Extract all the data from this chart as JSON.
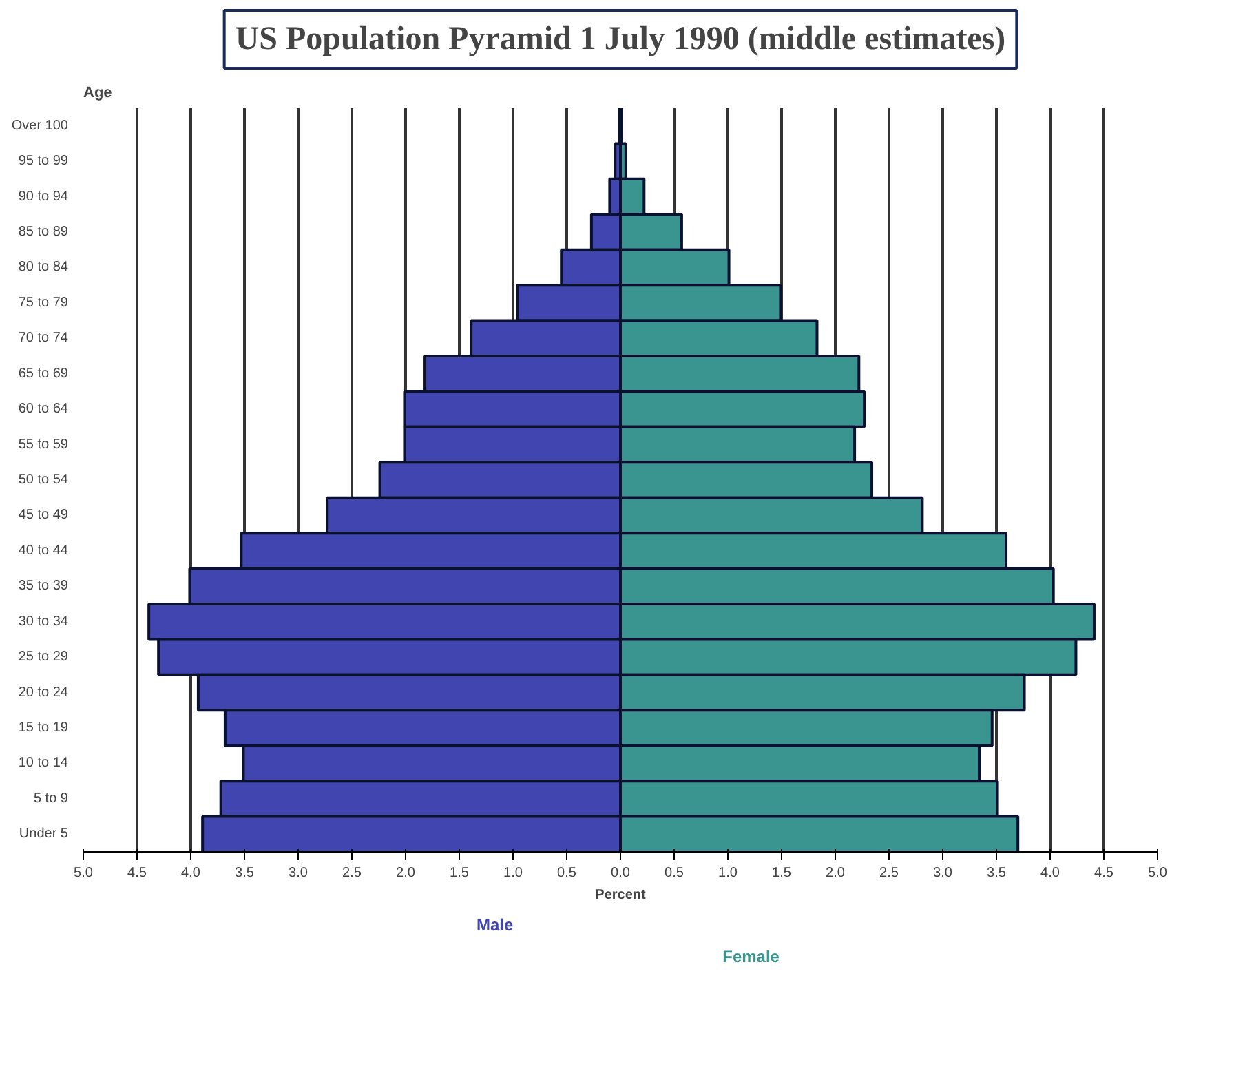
{
  "chart_data": {
    "type": "bar",
    "orientation": "horizontal",
    "title": "US Population Pyramid 1 July 1990 (middle estimates)",
    "xlabel": "Percent",
    "ylabel": "Age",
    "categories": [
      "Over 100",
      "95 to 99",
      "90 to 94",
      "85 to 89",
      "80 to 84",
      "75 to 79",
      "70 to 74",
      "65 to 69",
      "60 to 64",
      "55 to 59",
      "50 to 54",
      "45 to 49",
      "40 to 44",
      "35 to 39",
      "30 to 34",
      "25 to 29",
      "20 to 24",
      "15 to 19",
      "10 to 14",
      "5 to 9",
      "Under 5"
    ],
    "series": [
      {
        "name": "Male",
        "color": "#4045b0",
        "values": [
          -0.01,
          -0.05,
          -0.1,
          -0.27,
          -0.55,
          -0.96,
          -1.39,
          -1.82,
          -2.01,
          -2.01,
          -2.24,
          -2.73,
          -3.53,
          -4.01,
          -4.39,
          -4.3,
          -3.93,
          -3.68,
          -3.51,
          -3.72,
          -3.89
        ]
      },
      {
        "name": "Female",
        "color": "#3a9490",
        "values": [
          0.01,
          0.05,
          0.22,
          0.57,
          1.01,
          1.49,
          1.83,
          2.22,
          2.27,
          2.18,
          2.34,
          2.81,
          3.59,
          4.03,
          4.41,
          4.24,
          3.76,
          3.46,
          3.34,
          3.51,
          3.7
        ]
      }
    ],
    "xlim": [
      -5,
      5
    ],
    "xticks": [
      {
        "value": -5,
        "label": "5.0"
      },
      {
        "value": -4.5,
        "label": "4.5"
      },
      {
        "value": -4,
        "label": "4.0"
      },
      {
        "value": -3.5,
        "label": "3.5"
      },
      {
        "value": -3,
        "label": "3.0"
      },
      {
        "value": -2.5,
        "label": "2.5"
      },
      {
        "value": -2,
        "label": "2.0"
      },
      {
        "value": -1.5,
        "label": "1.5"
      },
      {
        "value": -1,
        "label": "1.0"
      },
      {
        "value": -0.5,
        "label": "0.5"
      },
      {
        "value": 0,
        "label": "0.0"
      },
      {
        "value": 0.5,
        "label": "0.5"
      },
      {
        "value": 1,
        "label": "1.0"
      },
      {
        "value": 1.5,
        "label": "1.5"
      },
      {
        "value": 2,
        "label": "2.0"
      },
      {
        "value": 2.5,
        "label": "2.5"
      },
      {
        "value": 3,
        "label": "3.0"
      },
      {
        "value": 3.5,
        "label": "3.5"
      },
      {
        "value": 4,
        "label": "4.0"
      },
      {
        "value": 4.5,
        "label": "4.5"
      },
      {
        "value": 5,
        "label": "5.0"
      }
    ],
    "grid": "x",
    "stacked": true
  }
}
